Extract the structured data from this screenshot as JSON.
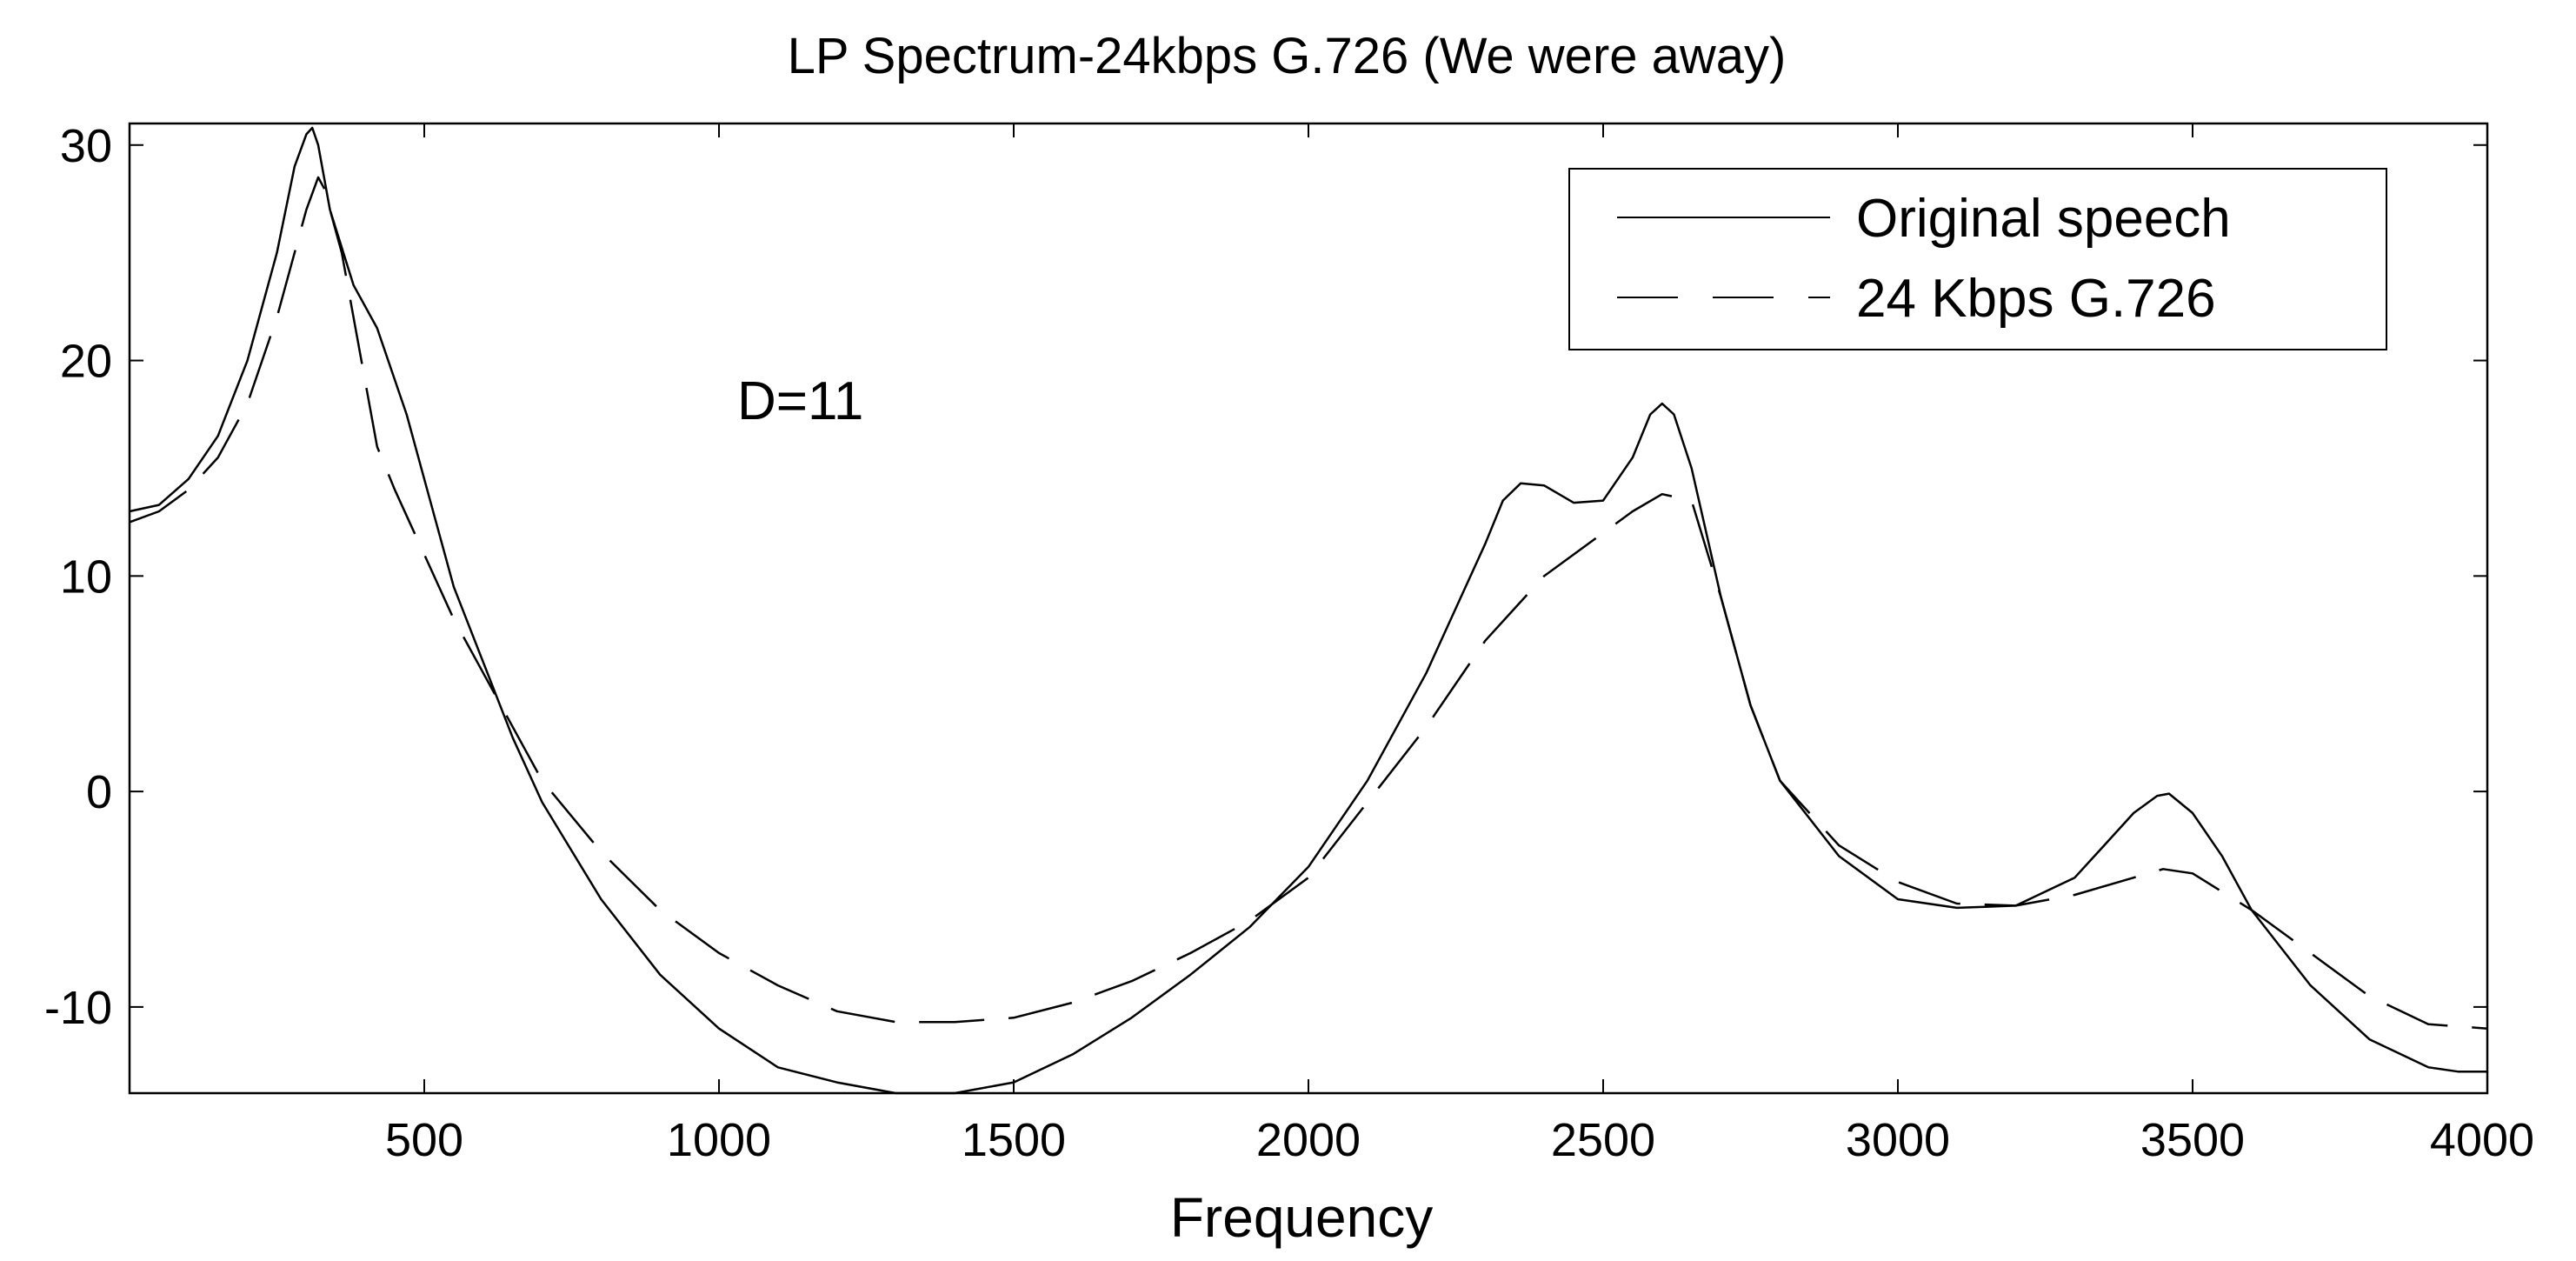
{
  "chart_data": {
    "type": "line",
    "title": "LP Spectrum-24kbps G.726 (We were away)",
    "xlabel": "Frequency",
    "ylabel": "",
    "xlim": [
      0,
      4000
    ],
    "ylim": [
      -14,
      31
    ],
    "xticks": [
      500,
      1000,
      1500,
      2000,
      2500,
      3000,
      3500,
      4000
    ],
    "yticks": [
      -10,
      0,
      10,
      20,
      30
    ],
    "grid": false,
    "legend_position": "top-right",
    "annotation": "D=11",
    "colors": {
      "line": "#000000",
      "background": "#ffffff"
    },
    "series": [
      {
        "name": "Original speech",
        "style": "solid",
        "x": [
          0,
          50,
          100,
          150,
          200,
          250,
          280,
          300,
          310,
          320,
          340,
          380,
          420,
          470,
          500,
          550,
          600,
          650,
          700,
          800,
          900,
          1000,
          1100,
          1200,
          1300,
          1400,
          1500,
          1600,
          1700,
          1800,
          1900,
          2000,
          2100,
          2200,
          2250,
          2300,
          2330,
          2360,
          2400,
          2450,
          2500,
          2550,
          2580,
          2600,
          2620,
          2650,
          2700,
          2750,
          2800,
          2900,
          3000,
          3100,
          3200,
          3300,
          3350,
          3400,
          3440,
          3460,
          3500,
          3550,
          3600,
          3700,
          3800,
          3900,
          3950,
          4000
        ],
        "y": [
          13,
          13.3,
          14.5,
          16.5,
          20,
          25,
          29,
          30.5,
          30.8,
          30,
          27,
          23.5,
          21.5,
          17.5,
          14.5,
          9.5,
          6,
          2.5,
          -0.5,
          -5,
          -8.5,
          -11,
          -12.8,
          -13.5,
          -14,
          -14,
          -13.5,
          -12.2,
          -10.5,
          -8.5,
          -6.3,
          -3.5,
          0.5,
          5.5,
          8.5,
          11.5,
          13.5,
          14.3,
          14.2,
          13.4,
          13.5,
          15.5,
          17.5,
          18,
          17.5,
          15,
          9,
          4,
          0.5,
          -3,
          -5,
          -5.4,
          -5.3,
          -4,
          -2.5,
          -1,
          -0.2,
          -0.1,
          -1,
          -3,
          -5.5,
          -9,
          -11.5,
          -12.8,
          -13,
          -13
        ]
      },
      {
        "name": "24 Kbps G.726",
        "style": "dashed",
        "x": [
          0,
          50,
          100,
          150,
          200,
          250,
          300,
          320,
          330,
          360,
          400,
          420,
          450,
          500,
          550,
          600,
          650,
          700,
          800,
          900,
          1000,
          1100,
          1200,
          1300,
          1400,
          1500,
          1600,
          1700,
          1800,
          1900,
          2000,
          2100,
          2200,
          2300,
          2400,
          2500,
          2550,
          2600,
          2650,
          2700,
          2750,
          2800,
          2900,
          3000,
          3100,
          3200,
          3300,
          3400,
          3450,
          3500,
          3600,
          3700,
          3800,
          3900,
          4000
        ],
        "y": [
          12.5,
          13,
          14,
          15.5,
          18,
          22,
          27,
          28.5,
          28,
          25,
          19,
          16,
          14,
          11,
          8,
          5.5,
          3,
          0.5,
          -2.8,
          -5.5,
          -7.5,
          -9,
          -10.2,
          -10.7,
          -10.7,
          -10.5,
          -9.8,
          -8.8,
          -7.5,
          -6,
          -4,
          -0.5,
          3,
          7,
          10,
          12,
          13,
          13.8,
          13.5,
          9,
          4,
          0.5,
          -2.5,
          -4.2,
          -5.2,
          -5.3,
          -4.8,
          -4,
          -3.6,
          -3.8,
          -5.5,
          -7.5,
          -9.5,
          -10.8,
          -11
        ]
      }
    ]
  }
}
